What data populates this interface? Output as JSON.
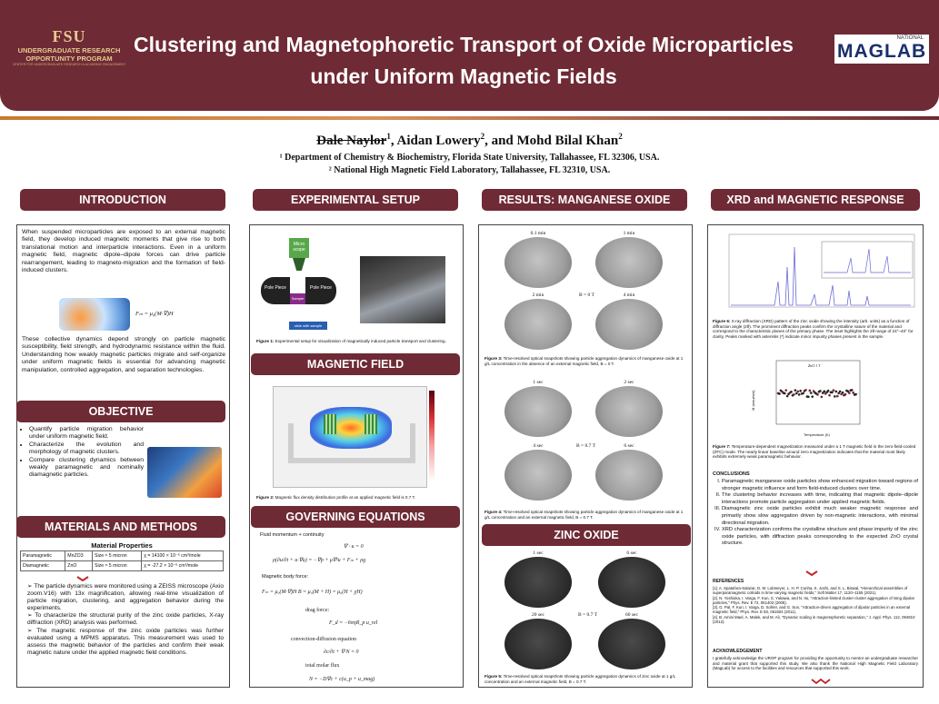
{
  "header": {
    "logo_mark": "FSU",
    "logo_line1": "UNDERGRADUATE RESEARCH",
    "logo_line2": "OPPORTUNITY PROGRAM",
    "logo_line3": "CENTER FOR UNDERGRADUATE RESEARCH & ACADEMIC ENGAGEMENT",
    "title_line1": "Clustering and Magnetophoretic Transport of Oxide Microparticles",
    "title_line2": "under Uniform Magnetic Fields",
    "maglab_national": "NATIONAL",
    "maglab_name": "MAGLAB"
  },
  "authors": {
    "first": "Dale Naylor",
    "first_sup": "1",
    "second": ", Aidan Lowery",
    "second_sup": "2",
    "third": ", and Mohd Bilal Khan",
    "third_sup": "2",
    "affil1": "¹ Department of Chemistry & Biochemistry, Florida State University, Tallahassee, FL 32306, USA.",
    "affil2": "² National High Magnetic Field Laboratory, Tallahassee, FL 32310, USA."
  },
  "intro": {
    "heading": "INTRODUCTION",
    "p1": "When suspended microparticles are exposed to an external magnetic field, they develop induced magnetic moments that give rise to both translational motion and interparticle interactions. Even in a uniform magnetic field, magnetic dipole–dipole forces can drive particle rearrangement, leading to magneto-migration and the formation of field-induced clusters.",
    "formula": "Fₘ = μ₀(M·∇)H",
    "p2": "These collective dynamics depend strongly on particle magnetic susceptibility, field strength, and hydrodynamic resistance within the fluid. Understanding how weakly magnetic particles migrate and self-organize under uniform magnetic fields is essential for advancing magnetic manipulation, controlled aggregation, and separation technologies."
  },
  "objective": {
    "heading": "OBJECTIVE",
    "items": [
      "Quantify particle migration behavior under uniform magnetic field.",
      "Characterize the evolution and morphology of magnetic clusters.",
      "Compare clustering dynamics between weakly paramagnetic and nominally diamagnetic particles."
    ]
  },
  "methods": {
    "heading": "MATERIALS AND METHODS",
    "table_title": "Material Properties",
    "rows": [
      [
        "Paramagnetic",
        "MnZO3",
        "Size ≈ 5 micron",
        "χ = 14100 × 10⁻⁶ cm³/mole"
      ],
      [
        "Diamagnetic",
        "ZnO",
        "Size ≈ 5 micron",
        "χ = -27.2 × 10⁻⁶ cm³/mole"
      ]
    ],
    "bullets": [
      "The particle dynamics were monitored using a ZEISS microscope (Axio zoom.V16) with 13x magnification, allowing real-time visualization of particle migration, clustering, and aggregation behavior during the experiments.",
      "To characterize the structural purity of the zinc oxide particles, X-ray diffraction (XRD) analysis was performed.",
      "The magnetic response of the zinc oxide particles was further evaluated using a MPMS apparatus. This measurement was used to assess the magnetic behavior of the particles and confirm their weak magnetic nature under the applied magnetic field conditions."
    ]
  },
  "setup": {
    "heading": "EXPERIMENTAL SETUP",
    "microscope": "Micro scope",
    "pole_left": "Pole Piece",
    "pole_right": "Pole Piece",
    "sample": "Sample",
    "slide": "slide with sample",
    "caption_label": "Figure 1:",
    "caption": " Experimental setup for visualization of magnetically induced particle transport and clustering."
  },
  "field": {
    "heading": "MAGNETIC FIELD",
    "caption_label": "Figure 2:",
    "caption": " Magnetic flux density distribution profile at an applied magnetic field is 0.7 T."
  },
  "equations": {
    "heading": "GOVERNING EQUATIONS",
    "l1": "Fluid momentum + continuity",
    "e1": "∇ · u = 0",
    "e2": "ρ(∂u/∂t + u·∇u) = −∇p + μ∇²u + Fₘ + ρg",
    "l2": "Magnetic body force:",
    "e3": "Fₘ = μ₀(M·∇)H          B = μ₀(M + H) = μ₀(H + χH)",
    "l3": "drag force:",
    "e4": "F_d = −6πηR_p u_rel",
    "l4": "convection-diffusion equation",
    "e5": "∂c/∂t + ∇·N = 0",
    "l5": "total molar flux",
    "e6": "N = −D∇c + c(u_p + u_mag)"
  },
  "mn": {
    "heading": "RESULTS: MANGANESE OXIDE",
    "labels_a": [
      "0.1 min",
      "1 min",
      "2 min",
      "4 min"
    ],
    "field_a": "B = 0 T",
    "cap3_label": "Figure 3:",
    "cap3": " Time-resolved optical snapshots showing particle aggregation dynamics of manganese oxide at 1 g/L concentration in the absence of an external magnetic field, B = 0 T.",
    "labels_b": [
      "1 sec",
      "2 sec",
      "4 sec",
      "6 sec"
    ],
    "field_b": "B = 0.7 T",
    "cap4_label": "Figure 4:",
    "cap4": " Time-resolved optical snapshots showing particle aggregation dynamics of manganese oxide at 1 g/L concentration and an external magnetic field, B = 0.7 T."
  },
  "zn": {
    "heading": "ZINC OXIDE",
    "labels": [
      "1 sec",
      "6 sec",
      "20 sec",
      "60 sec"
    ],
    "field": "B = 0.7 T",
    "cap5_label": "Figure 5:",
    "cap5": " Time-resolved optical snapshots showing particle aggregation dynamics of zinc oxide at 1 g/L concentration and an external magnetic field, B = 0.7 T."
  },
  "xrd": {
    "heading": "XRD and MAGNETIC RESPONSE",
    "cap6_label": "Figure 6:",
    "cap6": " X-ray diffraction (XRD) pattern of the zinc oxide showing the intensity (arb. units) as a function of diffraction angle (2θ). The prominent diffraction peaks confirm the crystalline nature of the material and correspond to the characteristic planes of the primary phase. The inset highlights the 2θ range of 24°–40° for clarity. Peaks marked with asterisks (*) indicate minor impurity phases present in the sample.",
    "m_axis": "M (emu/mol)",
    "t_axis": "Temperature (K)",
    "m_legend": "ZnO 1 T",
    "cap7_label": "Figure 7:",
    "cap7": " Temperature-dependent magnetization measured under a 1 T magnetic field in the zero-field-cooled (ZFC) mode. The nearly linear baseline around zero magnetization indicates that the material most likely exhibits extremely weak paramagnetic behavior.",
    "conclusions_heading": "CONCLUSIONS",
    "conclusions": [
      "Paramagnetic manganese oxide particles show enhanced migration toward regions of stronger magnetic influence and form field-induced clusters over time.",
      "The clustering behavior increases with time, indicating that magnetic dipole–dipole interactions promote particle aggregation under applied magnetic fields.",
      "Diamagnetic zinc oxide particles exhibit much weaker magnetic response and primarily show slow aggregation driven by non-magnetic interactions, with minimal directional migration.",
      "XRD characterization confirms the crystalline structure and phase impurity of the zinc oxide particles, with diffraction peaks corresponding to the expected ZnO crystal structure."
    ],
    "refs_heading": "REFERENCES",
    "refs": [
      "[1]. A. Spatafora-Salazar, D. M. Lobmeyer, L. H. P. Cunha, K. Joshi, and S. L. Biswal, \"Hierarchical assemblies of superparamagnetic colloids in time-varying magnetic fields,\" Soft Matter 17, 1120–1155 (2021).",
      "[2]. N. Yoshioka, I. Varga, F. Kun, S. Yukawa, and N. Ito, \"Attraction-limited cluster-cluster aggregation of Ising dipolar particles,\" Phys. Rev. E 72, 061403 (2005).",
      "[3]. G. Pal, F. Kun, I. Varga, D. Sohler, and G. Sun, \"Attraction-driven aggregation of dipolar particles in an external magnetic field,\" Phys. Rev. E 83, 061504 (2011).",
      "[4]. B. Amini Mael, A. Malek, and M. Ali, \"Dynamic scaling in magnetophoretic separation,\" J. Appl. Phys. 112, 094910 (2012)."
    ],
    "ack_heading": "ACKNOWLEDGEMENT",
    "ack": "I gratefully acknowledge the UROP program for providing the opportunity to mentor an undergraduate researcher and material grant that supported this study. We also thank the National High Magnetic Field Laboratory (MagLab) for access to the facilities and resources that supported this work."
  },
  "colors": {
    "maroon": "#6e2a35",
    "gold": "#c97a2a",
    "chevron": "#c0282a"
  }
}
